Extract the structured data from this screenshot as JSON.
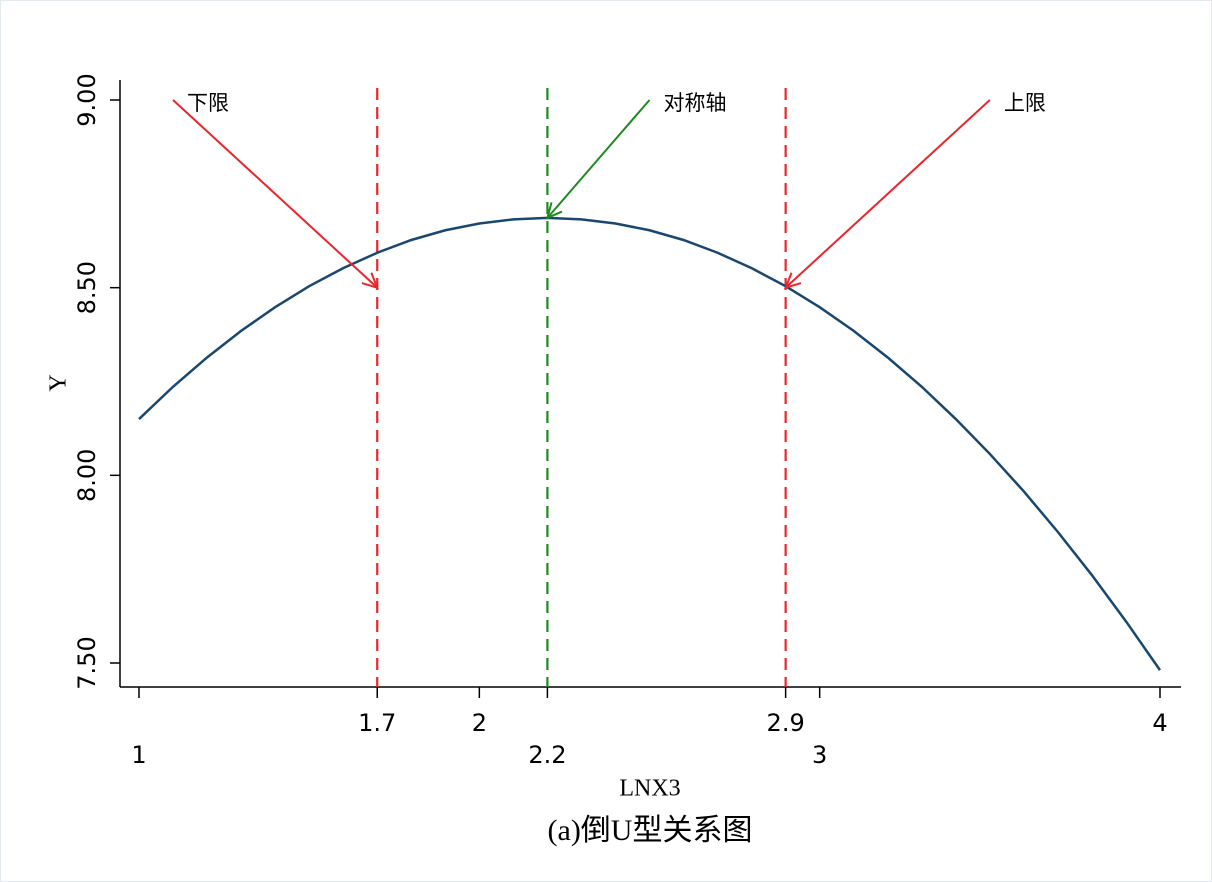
{
  "chart_data": {
    "type": "line",
    "caption": "(a)倒U型关系图",
    "x_label": "LNX3",
    "y_label": "Y",
    "x": [
      1.0,
      1.1,
      1.2,
      1.3,
      1.4,
      1.5,
      1.6,
      1.7,
      1.8,
      1.9,
      2.0,
      2.1,
      2.2,
      2.3,
      2.4,
      2.5,
      2.6,
      2.7,
      2.8,
      2.9,
      3.0,
      3.1,
      3.2,
      3.3,
      3.4,
      3.5,
      3.6,
      3.7,
      3.8,
      3.9,
      4.0
    ],
    "series": [
      {
        "color": "#1a476f",
        "values": [
          8.15,
          8.236,
          8.314,
          8.385,
          8.448,
          8.504,
          8.552,
          8.593,
          8.627,
          8.653,
          8.671,
          8.682,
          8.686,
          8.682,
          8.671,
          8.653,
          8.627,
          8.593,
          8.552,
          8.504,
          8.448,
          8.385,
          8.314,
          8.236,
          8.15,
          8.057,
          7.957,
          7.849,
          7.734,
          7.611,
          7.481
        ]
      }
    ],
    "xlim": [
      1,
      4
    ],
    "ylim": [
      7.5,
      9.0
    ],
    "xticks": [
      1,
      1.7,
      2,
      2.2,
      2.9,
      3,
      4
    ],
    "yticks": [
      {
        "value": 7.5,
        "label": "7.50"
      },
      {
        "value": 8.0,
        "label": "8.00"
      },
      {
        "value": 8.5,
        "label": "8.50"
      },
      {
        "value": 9.0,
        "label": "9.00"
      }
    ],
    "vlines": [
      {
        "x": 1.7,
        "color": "#e8262b"
      },
      {
        "x": 2.2,
        "color": "#1e8a1e"
      },
      {
        "x": 2.9,
        "color": "#e8262b"
      }
    ],
    "annotations": [
      {
        "text": "下限",
        "color": "#e8262b",
        "x": 1.1,
        "y": 9.0,
        "to_x": 1.7,
        "to_y": 8.5
      },
      {
        "text": "对称轴",
        "color": "#1e8a1e",
        "x": 2.5,
        "y": 9.0,
        "to_x": 2.2,
        "to_y": 8.686
      },
      {
        "text": "上限",
        "color": "#e8262b",
        "x": 3.5,
        "y": 9.0,
        "to_x": 2.9,
        "to_y": 8.5
      }
    ]
  }
}
